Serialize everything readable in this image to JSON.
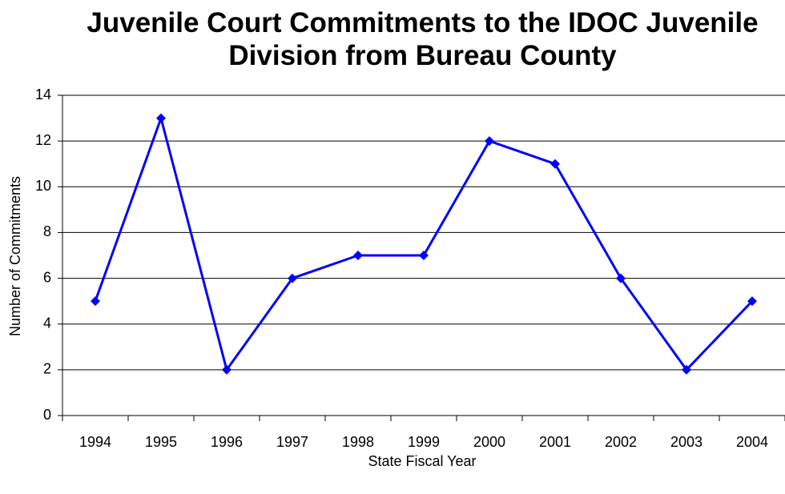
{
  "chart_data": {
    "type": "line",
    "title": "Juvenile Court Commitments to the IDOC Juvenile Division from Bureau County",
    "x_label": "State Fiscal Year",
    "y_label": "Number of Commitments",
    "categories": [
      "1994",
      "1995",
      "1996",
      "1997",
      "1998",
      "1999",
      "2000",
      "2001",
      "2002",
      "2003",
      "2004"
    ],
    "series": [
      {
        "name": "Commitments",
        "color": "#0000ff",
        "values": [
          5,
          13,
          2,
          6,
          7,
          7,
          12,
          11,
          6,
          2,
          5
        ]
      }
    ],
    "ylim": [
      0,
      14
    ],
    "yticks": [
      0,
      2,
      4,
      6,
      8,
      10,
      12,
      14
    ],
    "grid": true
  }
}
